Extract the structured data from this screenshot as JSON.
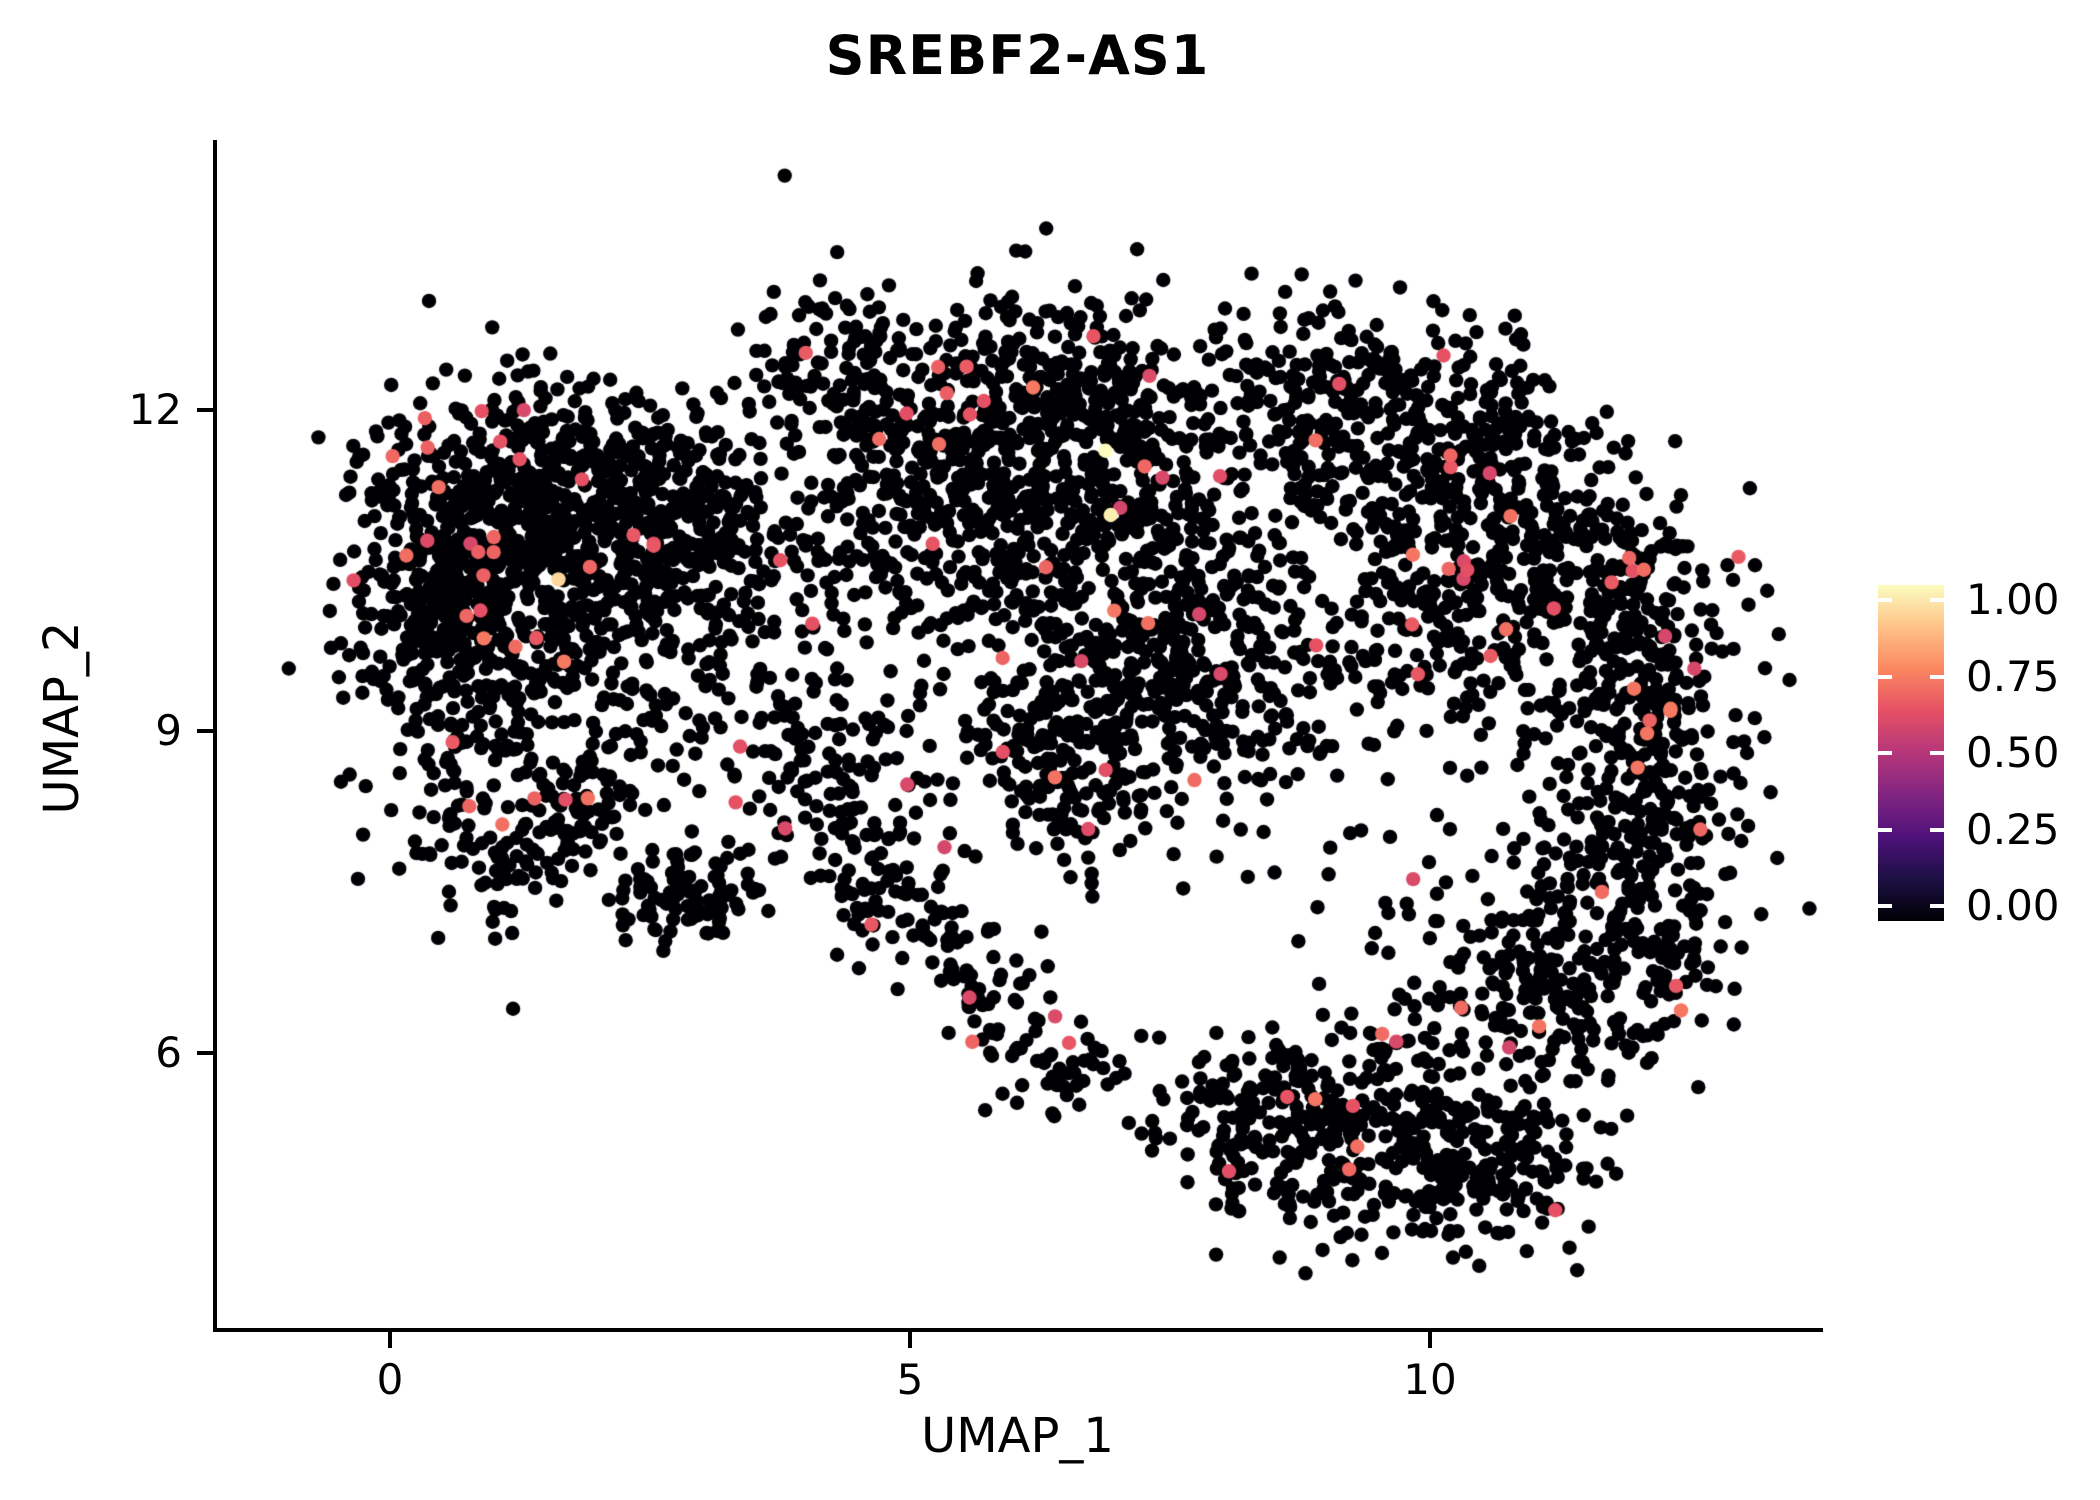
{
  "title": "SREBF2-AS1",
  "chart_data": {
    "type": "scatter",
    "title": "SREBF2-AS1",
    "xlabel": "UMAP_1",
    "ylabel": "UMAP_2",
    "xlim": [
      -1.2,
      13.6
    ],
    "ylim": [
      3.7,
      13.9
    ],
    "x_ticks": [
      0,
      5,
      10
    ],
    "y_ticks": [
      12,
      9,
      6
    ],
    "x_tick_labels": [
      "0",
      "5",
      "10"
    ],
    "y_tick_labels": [
      "12",
      "9",
      "6"
    ],
    "grid": false,
    "legend_position": "right",
    "colorbar": {
      "labels": [
        "1.00",
        "0.75",
        "0.50",
        "0.25",
        "0.00"
      ],
      "min": 0.0,
      "max": 1.0,
      "colormap": "magma",
      "stops": [
        "#000004",
        "#1C1044",
        "#4F127B",
        "#812581",
        "#B5367A",
        "#E55064",
        "#FB8761",
        "#FEC287",
        "#FCFDBF"
      ]
    },
    "zero_color": "#000004",
    "expressing_color": "#E5506A",
    "point_radius_px": 7.2,
    "seed": 1337,
    "red_fraction": 0.02,
    "clusters": [
      {
        "type": "gauss",
        "cx": 0.9,
        "cy": 10.9,
        "sx": 0.55,
        "sy": 0.6,
        "n": 420
      },
      {
        "type": "gauss",
        "cx": 2.0,
        "cy": 11.2,
        "sx": 0.7,
        "sy": 0.55,
        "n": 380
      },
      {
        "type": "gauss",
        "cx": 0.35,
        "cy": 10.1,
        "sx": 0.4,
        "sy": 0.6,
        "n": 150
      },
      {
        "type": "gauss",
        "cx": 1.5,
        "cy": 9.7,
        "sx": 0.8,
        "sy": 0.5,
        "n": 250
      },
      {
        "type": "gauss",
        "cx": 0.9,
        "cy": 8.4,
        "sx": 0.5,
        "sy": 0.5,
        "n": 110
      },
      {
        "type": "strip",
        "x1": 1.1,
        "y1": 7.55,
        "x2": 2.05,
        "y2": 8.6,
        "jitter": 0.22,
        "n": 90
      },
      {
        "type": "gauss",
        "cx": 2.85,
        "cy": 7.45,
        "sx": 0.3,
        "sy": 0.22,
        "n": 90
      },
      {
        "type": "gauss",
        "cx": 3.35,
        "cy": 9.4,
        "sx": 0.7,
        "sy": 0.9,
        "n": 110
      },
      {
        "type": "gauss",
        "cx": 2.95,
        "cy": 10.7,
        "sx": 0.5,
        "sy": 0.5,
        "n": 140
      },
      {
        "type": "gauss",
        "cx": 4.3,
        "cy": 12.4,
        "sx": 0.5,
        "sy": 0.45,
        "n": 90
      },
      {
        "type": "gauss",
        "cx": 5.6,
        "cy": 11.9,
        "sx": 0.8,
        "sy": 0.55,
        "n": 330
      },
      {
        "type": "gauss",
        "cx": 6.7,
        "cy": 12.1,
        "sx": 0.6,
        "sy": 0.5,
        "n": 200
      },
      {
        "type": "gauss",
        "cx": 4.9,
        "cy": 10.9,
        "sx": 0.6,
        "sy": 0.55,
        "n": 160
      },
      {
        "type": "gauss",
        "cx": 6.3,
        "cy": 10.6,
        "sx": 0.7,
        "sy": 0.55,
        "n": 170
      },
      {
        "type": "gauss",
        "cx": 7.5,
        "cy": 11.2,
        "sx": 0.6,
        "sy": 0.7,
        "n": 150
      },
      {
        "type": "gauss",
        "cx": 7.3,
        "cy": 9.3,
        "sx": 0.75,
        "sy": 0.65,
        "n": 330
      },
      {
        "type": "gauss",
        "cx": 6.4,
        "cy": 8.7,
        "sx": 0.5,
        "sy": 0.5,
        "n": 130
      },
      {
        "type": "gauss",
        "cx": 8.3,
        "cy": 9.9,
        "sx": 0.6,
        "sy": 0.6,
        "n": 130
      },
      {
        "type": "strip",
        "x1": 4.4,
        "y1": 7.9,
        "x2": 6.7,
        "y2": 5.6,
        "jitter": 0.3,
        "n": 170
      },
      {
        "type": "gauss",
        "cx": 4.4,
        "cy": 8.6,
        "sx": 0.5,
        "sy": 0.6,
        "n": 110
      },
      {
        "type": "gauss",
        "cx": 8.9,
        "cy": 12.1,
        "sx": 0.55,
        "sy": 0.5,
        "n": 200
      },
      {
        "type": "gauss",
        "cx": 9.9,
        "cy": 11.3,
        "sx": 0.55,
        "sy": 0.5,
        "n": 150
      },
      {
        "type": "gauss",
        "cx": 10.4,
        "cy": 12.1,
        "sx": 0.4,
        "sy": 0.4,
        "n": 80
      },
      {
        "type": "gauss",
        "cx": 11.0,
        "cy": 10.8,
        "sx": 0.65,
        "sy": 0.55,
        "n": 230
      },
      {
        "type": "gauss",
        "cx": 11.9,
        "cy": 9.6,
        "sx": 0.55,
        "sy": 0.75,
        "n": 280
      },
      {
        "type": "gauss",
        "cx": 11.9,
        "cy": 7.8,
        "sx": 0.55,
        "sy": 0.75,
        "n": 280
      },
      {
        "type": "gauss",
        "cx": 11.0,
        "cy": 6.6,
        "sx": 0.7,
        "sy": 0.55,
        "n": 230
      },
      {
        "type": "gauss",
        "cx": 10.2,
        "cy": 9.9,
        "sx": 0.5,
        "sy": 0.6,
        "n": 110
      },
      {
        "type": "gauss",
        "cx": 9.0,
        "cy": 8.0,
        "sx": 0.8,
        "sy": 0.8,
        "n": 25
      },
      {
        "type": "gauss",
        "cx": 9.6,
        "cy": 5.2,
        "sx": 0.85,
        "sy": 0.5,
        "n": 280
      },
      {
        "type": "gauss",
        "cx": 8.3,
        "cy": 5.4,
        "sx": 0.5,
        "sy": 0.45,
        "n": 130
      },
      {
        "type": "gauss",
        "cx": 10.6,
        "cy": 4.9,
        "sx": 0.5,
        "sy": 0.4,
        "n": 130
      }
    ],
    "highlight_points": [
      {
        "x": 6.88,
        "y": 11.62,
        "v": 1.0
      },
      {
        "x": 6.93,
        "y": 11.02,
        "v": 0.97
      },
      {
        "x": 1.62,
        "y": 10.42,
        "v": 0.92
      }
    ]
  }
}
